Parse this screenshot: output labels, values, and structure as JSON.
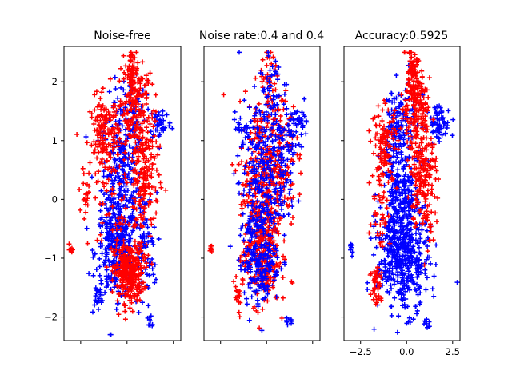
{
  "colors": {
    "class_a": "#0000ff",
    "class_b": "#ff0000",
    "axis": "#000000",
    "background": "#ffffff"
  },
  "marker": "plus",
  "chart_data": [
    {
      "type": "scatter",
      "title": "Noise-free",
      "xlabel": "",
      "ylabel": "",
      "xlim": [
        -3.4,
        2.9
      ],
      "ylim": [
        -2.4,
        2.6
      ],
      "show_x_tick_labels": false,
      "show_y_tick_labels": true,
      "xticks": [
        -2.5,
        0.0,
        2.5
      ],
      "xtick_labels": [
        "−2.5",
        "0.0",
        "2.5"
      ],
      "yticks": [
        -2,
        -1,
        0,
        1,
        2
      ],
      "ytick_labels": [
        "−2",
        "−1",
        "0",
        "1",
        "2"
      ],
      "grid": false,
      "clusters": [
        {
          "color": "blue",
          "n": 300,
          "cx": -0.3,
          "cy": 0.2,
          "sx": 0.55,
          "sy": 0.75
        },
        {
          "color": "blue",
          "n": 240,
          "cx": -0.6,
          "cy": -0.9,
          "sx": 0.55,
          "sy": 0.4
        },
        {
          "color": "blue",
          "n": 80,
          "cx": 0.9,
          "cy": -0.9,
          "sx": 0.35,
          "sy": 0.5
        },
        {
          "color": "blue",
          "n": 40,
          "cx": 1.8,
          "cy": 1.3,
          "sx": 0.3,
          "sy": 0.15
        },
        {
          "color": "blue",
          "n": 70,
          "cx": 0.3,
          "cy": 1.5,
          "sx": 0.35,
          "sy": 0.35
        },
        {
          "color": "blue",
          "n": 18,
          "cx": -1.6,
          "cy": -1.7,
          "sx": 0.15,
          "sy": 0.15
        },
        {
          "color": "blue",
          "n": 8,
          "cx": 1.2,
          "cy": -2.1,
          "sx": 0.15,
          "sy": 0.05
        },
        {
          "color": "red",
          "n": 300,
          "cx": 0.1,
          "cy": -1.25,
          "sx": 0.4,
          "sy": 0.25
        },
        {
          "color": "red",
          "n": 160,
          "cx": -1.2,
          "cy": 1.05,
          "sx": 0.4,
          "sy": 0.35
        },
        {
          "color": "red",
          "n": 200,
          "cx": 0.9,
          "cy": 0.4,
          "sx": 0.4,
          "sy": 0.6
        },
        {
          "color": "red",
          "n": 140,
          "cx": 0.3,
          "cy": 1.6,
          "sx": 0.4,
          "sy": 0.35
        },
        {
          "color": "red",
          "n": 40,
          "cx": 0.2,
          "cy": 2.2,
          "sx": 0.15,
          "sy": 0.15
        },
        {
          "color": "red",
          "n": 20,
          "cx": -2.2,
          "cy": 0.1,
          "sx": 0.2,
          "sy": 0.2
        },
        {
          "color": "red",
          "n": 8,
          "cx": -3.0,
          "cy": -0.85,
          "sx": 0.05,
          "sy": 0.05
        },
        {
          "color": "red",
          "n": 30,
          "cx": -0.8,
          "cy": -0.3,
          "sx": 0.4,
          "sy": 0.3
        }
      ]
    },
    {
      "type": "scatter",
      "title": "Noise rate:0.4 and 0.4",
      "xlabel": "",
      "ylabel": "",
      "xlim": [
        -3.4,
        2.9
      ],
      "ylim": [
        -2.4,
        2.6
      ],
      "show_x_tick_labels": false,
      "show_y_tick_labels": false,
      "xticks": [
        -2.5,
        0.0,
        2.5
      ],
      "xtick_labels": [
        "−2.5",
        "0.0",
        "2.5"
      ],
      "yticks": [
        -2,
        -1,
        0,
        1,
        2
      ],
      "ytick_labels": [
        "−2",
        "−1",
        "0",
        "1",
        "2"
      ],
      "grid": false,
      "clusters": [
        {
          "color": "red",
          "n": 260,
          "cx": -0.3,
          "cy": 0.2,
          "sx": 0.6,
          "sy": 0.75
        },
        {
          "color": "blue",
          "n": 260,
          "cx": -0.3,
          "cy": 0.2,
          "sx": 0.6,
          "sy": 0.75
        },
        {
          "color": "red",
          "n": 180,
          "cx": -0.3,
          "cy": -1.0,
          "sx": 0.5,
          "sy": 0.4
        },
        {
          "color": "blue",
          "n": 180,
          "cx": -0.3,
          "cy": -1.0,
          "sx": 0.5,
          "sy": 0.4
        },
        {
          "color": "red",
          "n": 120,
          "cx": 0.7,
          "cy": 0.8,
          "sx": 0.45,
          "sy": 0.6
        },
        {
          "color": "blue",
          "n": 120,
          "cx": 0.7,
          "cy": 0.8,
          "sx": 0.45,
          "sy": 0.6
        },
        {
          "color": "blue",
          "n": 40,
          "cx": 1.8,
          "cy": 1.3,
          "sx": 0.3,
          "sy": 0.15
        },
        {
          "color": "red",
          "n": 40,
          "cx": 0.2,
          "cy": 1.9,
          "sx": 0.3,
          "sy": 0.3
        },
        {
          "color": "blue",
          "n": 30,
          "cx": 0.2,
          "cy": 1.9,
          "sx": 0.3,
          "sy": 0.3
        },
        {
          "color": "red",
          "n": 18,
          "cx": -1.6,
          "cy": -1.7,
          "sx": 0.15,
          "sy": 0.15
        },
        {
          "color": "blue",
          "n": 8,
          "cx": 1.2,
          "cy": -2.1,
          "sx": 0.15,
          "sy": 0.05
        },
        {
          "color": "red",
          "n": 8,
          "cx": -3.0,
          "cy": -0.85,
          "sx": 0.05,
          "sy": 0.05
        },
        {
          "color": "blue",
          "n": 20,
          "cx": -1.2,
          "cy": 1.1,
          "sx": 0.3,
          "sy": 0.3
        }
      ]
    },
    {
      "type": "scatter",
      "title": "Accuracy:0.5925",
      "xlabel": "",
      "ylabel": "",
      "xlim": [
        -3.4,
        2.9
      ],
      "ylim": [
        -2.4,
        2.6
      ],
      "show_x_tick_labels": true,
      "show_y_tick_labels": false,
      "xticks": [
        -2.5,
        0.0,
        2.5
      ],
      "xtick_labels": [
        "−2.5",
        "0.0",
        "2.5"
      ],
      "yticks": [
        -2,
        -1,
        0,
        1,
        2
      ],
      "ytick_labels": [
        "−2",
        "−1",
        "0",
        "1",
        "2"
      ],
      "grid": false,
      "clusters": [
        {
          "color": "blue",
          "n": 320,
          "cx": -0.3,
          "cy": 0.2,
          "sx": 0.5,
          "sy": 0.75
        },
        {
          "color": "blue",
          "n": 400,
          "cx": -0.2,
          "cy": -1.0,
          "sx": 0.7,
          "sy": 0.45
        },
        {
          "color": "blue",
          "n": 60,
          "cx": 1.8,
          "cy": 1.3,
          "sx": 0.3,
          "sy": 0.15
        },
        {
          "color": "blue",
          "n": 60,
          "cx": -0.6,
          "cy": 1.3,
          "sx": 0.3,
          "sy": 0.3
        },
        {
          "color": "blue",
          "n": 8,
          "cx": -3.0,
          "cy": -0.85,
          "sx": 0.05,
          "sy": 0.05
        },
        {
          "color": "blue",
          "n": 8,
          "cx": 1.2,
          "cy": -2.1,
          "sx": 0.15,
          "sy": 0.05
        },
        {
          "color": "red",
          "n": 200,
          "cx": 0.9,
          "cy": 0.5,
          "sx": 0.35,
          "sy": 0.55
        },
        {
          "color": "red",
          "n": 160,
          "cx": 0.4,
          "cy": 1.6,
          "sx": 0.35,
          "sy": 0.35
        },
        {
          "color": "red",
          "n": 40,
          "cx": 0.3,
          "cy": 2.2,
          "sx": 0.15,
          "sy": 0.15
        },
        {
          "color": "red",
          "n": 120,
          "cx": -1.2,
          "cy": 0.9,
          "sx": 0.35,
          "sy": 0.35
        },
        {
          "color": "red",
          "n": 40,
          "cx": -1.6,
          "cy": -1.5,
          "sx": 0.2,
          "sy": 0.25
        },
        {
          "color": "red",
          "n": 30,
          "cx": -1.4,
          "cy": -0.3,
          "sx": 0.25,
          "sy": 0.25
        }
      ]
    }
  ]
}
